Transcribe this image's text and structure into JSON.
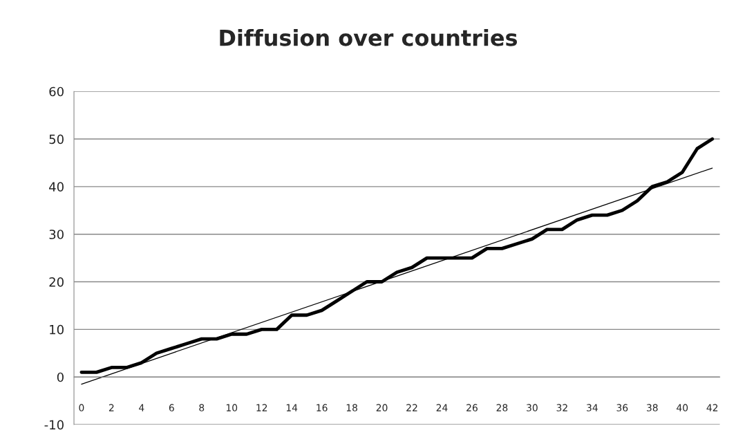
{
  "chart_data": {
    "type": "line",
    "title": "Diffusion over countries",
    "x": [
      0,
      1,
      2,
      3,
      4,
      5,
      6,
      7,
      8,
      9,
      10,
      11,
      12,
      13,
      14,
      15,
      16,
      17,
      18,
      19,
      20,
      21,
      22,
      23,
      24,
      25,
      26,
      27,
      28,
      29,
      30,
      31,
      32,
      33,
      34,
      35,
      36,
      37,
      38,
      39,
      40,
      41,
      42
    ],
    "series": [
      {
        "color": "#000000",
        "values": [
          1,
          1,
          2,
          2,
          3,
          5,
          6,
          7,
          8,
          8,
          9,
          9,
          10,
          10,
          13,
          13,
          14,
          16,
          18,
          20,
          20,
          22,
          23,
          25,
          25,
          25,
          25,
          27,
          27,
          28,
          29,
          31,
          31,
          33,
          34,
          34,
          35,
          37,
          40,
          41,
          43,
          48,
          50
        ]
      },
      {
        "color": "#000000",
        "x": [
          0,
          42
        ],
        "values": [
          -1.5,
          43.9
        ]
      }
    ],
    "xlim": [
      -0.5,
      42.5
    ],
    "xticks": [
      0,
      2,
      4,
      6,
      8,
      10,
      12,
      14,
      16,
      18,
      20,
      22,
      24,
      26,
      28,
      30,
      32,
      34,
      36,
      38,
      40,
      42
    ],
    "ylim": [
      -10,
      60
    ],
    "yticks": [
      -10,
      0,
      10,
      20,
      30,
      40,
      50,
      60
    ],
    "grid": "y",
    "legend": false,
    "marker": "none",
    "line_style": "solid"
  }
}
